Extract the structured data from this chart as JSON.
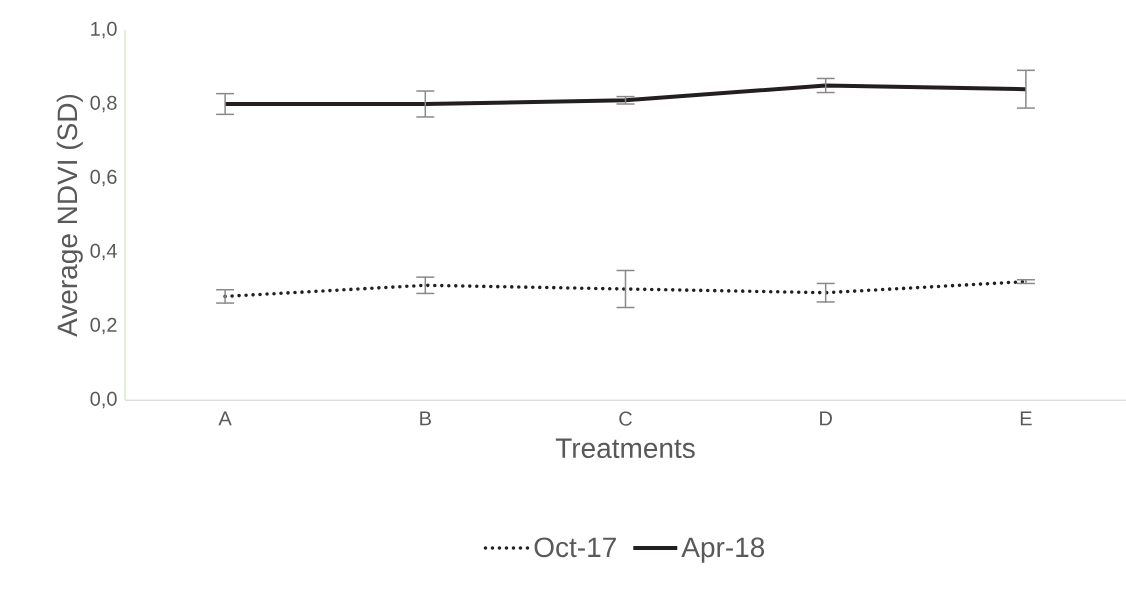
{
  "chart_data": {
    "type": "line",
    "xlabel": "Treatments",
    "ylabel": "Average NDVI  (SD)",
    "categories": [
      "A",
      "B",
      "C",
      "D",
      "E"
    ],
    "series": [
      {
        "name": "Oct-17",
        "color": "#231f20",
        "line_style": "dotted",
        "values": [
          0.28,
          0.31,
          0.3,
          0.29,
          0.32
        ],
        "errors": [
          0.018,
          0.022,
          0.05,
          0.025,
          0.005
        ]
      },
      {
        "name": "Apr-18",
        "color": "#231f20",
        "line_style": "solid",
        "values": [
          0.8,
          0.8,
          0.81,
          0.85,
          0.84
        ],
        "errors": [
          0.028,
          0.035,
          0.01,
          0.019,
          0.051
        ]
      }
    ],
    "ylim": [
      0,
      1.0
    ],
    "yticks": [
      {
        "value": 0,
        "label": "0,0"
      },
      {
        "value": 0.2,
        "label": "0,2"
      },
      {
        "value": 0.4,
        "label": "0,4"
      },
      {
        "value": 0.6,
        "label": "0,6"
      },
      {
        "value": 0.8,
        "label": "0,8"
      },
      {
        "value": 1.0,
        "label": "1,0"
      }
    ],
    "legend": "bottom",
    "marker": "none"
  }
}
